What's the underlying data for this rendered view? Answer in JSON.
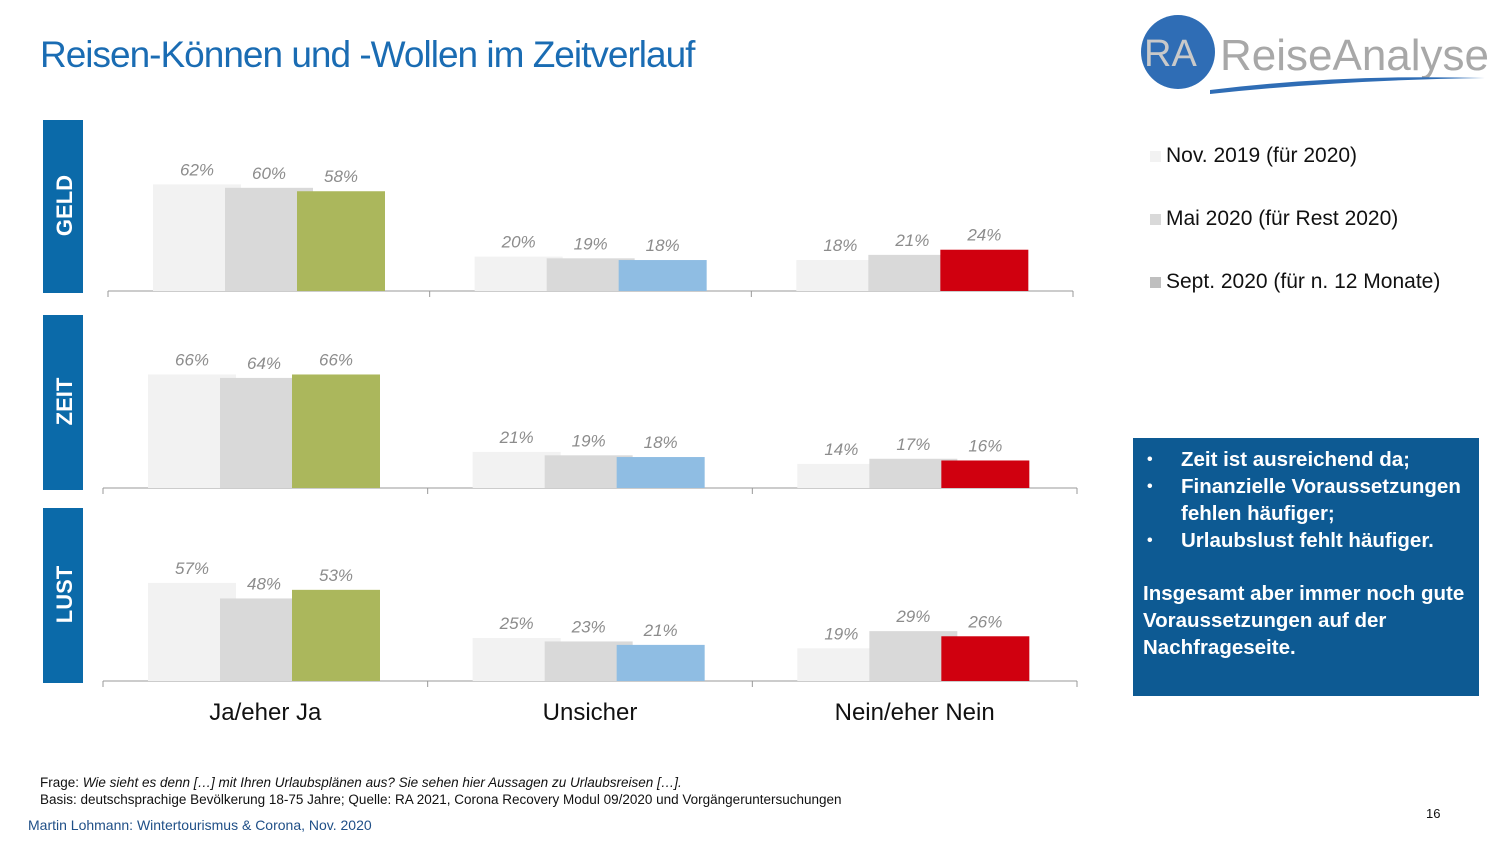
{
  "title": "Reisen-Können und -Wollen im Zeitverlauf",
  "logo": {
    "mark": "RA",
    "name": "ReiseAnalyse",
    "colors": {
      "circle": "#2f6db5",
      "text": "#a8a8a8"
    }
  },
  "legend": [
    {
      "label": "Nov. 2019 (für 2020)",
      "color": "#f2f2f2"
    },
    {
      "label": "Mai 2020 (für Rest 2020)",
      "color": "#d9d9d9"
    },
    {
      "label": "Sept. 2020 (für n. 12 Monate)",
      "color": "#bfbfbf"
    }
  ],
  "chart_data": {
    "type": "bar",
    "categories": [
      "Ja/eher Ja",
      "Unsicher",
      "Nein/eher Nein"
    ],
    "series_names": [
      "Nov. 2019 (für 2020)",
      "Mai 2020 (für Rest 2020)",
      "Sept. 2020 (für n. 12 Monate)"
    ],
    "highlight_colors": {
      "Ja/eher Ja": "#abb75c",
      "Unsicher": "#8fbde3",
      "Nein/eher Nein": "#d0000f"
    },
    "base_colors": [
      "#f2f2f2",
      "#d9d9d9"
    ],
    "unit": "%",
    "panels": [
      {
        "label": "GELD",
        "values": [
          [
            62,
            60,
            58
          ],
          [
            20,
            19,
            18
          ],
          [
            18,
            21,
            24
          ]
        ]
      },
      {
        "label": "ZEIT",
        "values": [
          [
            66,
            64,
            66
          ],
          [
            21,
            19,
            18
          ],
          [
            14,
            17,
            16
          ]
        ]
      },
      {
        "label": "LUST",
        "values": [
          [
            57,
            48,
            53
          ],
          [
            25,
            23,
            21
          ],
          [
            19,
            29,
            26
          ]
        ]
      }
    ]
  },
  "infobox": {
    "bullets": [
      "Zeit ist ausreichend da;",
      "Finanzielle Voraussetzungen fehlen häufiger;",
      "Urlaubslust fehlt häufiger."
    ],
    "summary": "Insgesamt aber immer noch gute Voraussetzungen auf der Nachfrageseite."
  },
  "footer": {
    "question_label": "Frage:",
    "question": "Wie sieht es denn […] mit Ihren Urlaubsplänen aus? Sie sehen hier Aussagen zu Urlaubsreisen […].",
    "basis": "Basis: deutschsprachige Bevölkerung 18-75 Jahre; Quelle: RA 2021, Corona Recovery Modul 09/2020 und Vorgängeruntersuchungen",
    "author": "Martin Lohmann: Wintertourismus & Corona, Nov.  2020",
    "page": "16"
  }
}
